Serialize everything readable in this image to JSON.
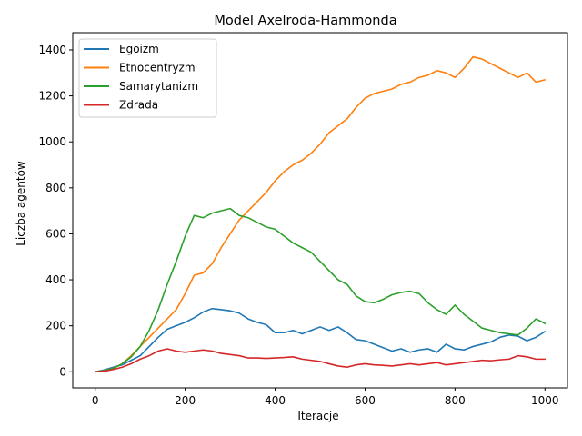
{
  "chart_data": {
    "type": "line",
    "title": "Model Axelroda-Hammonda",
    "xlabel": "Iteracje",
    "ylabel": "Liczba agentów",
    "xlim": [
      -50,
      1050
    ],
    "ylim": [
      -70,
      1475
    ],
    "xticks": [
      0,
      200,
      400,
      600,
      800,
      1000
    ],
    "yticks": [
      0,
      200,
      400,
      600,
      800,
      1000,
      1200,
      1400
    ],
    "grid": false,
    "legend_position": "top-left",
    "series": [
      {
        "name": "Egoizm",
        "color": "#1f77b4",
        "points": [
          [
            0,
            0
          ],
          [
            20,
            8
          ],
          [
            40,
            20
          ],
          [
            60,
            30
          ],
          [
            80,
            50
          ],
          [
            100,
            70
          ],
          [
            120,
            110
          ],
          [
            140,
            150
          ],
          [
            160,
            185
          ],
          [
            180,
            200
          ],
          [
            200,
            215
          ],
          [
            220,
            235
          ],
          [
            240,
            260
          ],
          [
            260,
            275
          ],
          [
            280,
            270
          ],
          [
            300,
            265
          ],
          [
            320,
            255
          ],
          [
            340,
            230
          ],
          [
            360,
            215
          ],
          [
            380,
            205
          ],
          [
            400,
            170
          ],
          [
            420,
            170
          ],
          [
            440,
            180
          ],
          [
            460,
            165
          ],
          [
            480,
            180
          ],
          [
            500,
            195
          ],
          [
            520,
            180
          ],
          [
            540,
            195
          ],
          [
            560,
            170
          ],
          [
            580,
            140
          ],
          [
            600,
            135
          ],
          [
            620,
            120
          ],
          [
            640,
            105
          ],
          [
            660,
            90
          ],
          [
            680,
            100
          ],
          [
            700,
            85
          ],
          [
            720,
            95
          ],
          [
            740,
            100
          ],
          [
            760,
            85
          ],
          [
            780,
            120
          ],
          [
            800,
            100
          ],
          [
            820,
            95
          ],
          [
            840,
            110
          ],
          [
            860,
            120
          ],
          [
            880,
            130
          ],
          [
            900,
            150
          ],
          [
            920,
            160
          ],
          [
            940,
            155
          ],
          [
            960,
            135
          ],
          [
            980,
            150
          ],
          [
            1000,
            175
          ]
        ]
      },
      {
        "name": "Etnocentryzm",
        "color": "#ff7f0e",
        "points": [
          [
            0,
            0
          ],
          [
            20,
            5
          ],
          [
            40,
            15
          ],
          [
            60,
            35
          ],
          [
            80,
            70
          ],
          [
            100,
            110
          ],
          [
            120,
            150
          ],
          [
            140,
            190
          ],
          [
            160,
            230
          ],
          [
            180,
            270
          ],
          [
            200,
            340
          ],
          [
            220,
            420
          ],
          [
            240,
            430
          ],
          [
            260,
            470
          ],
          [
            280,
            540
          ],
          [
            300,
            600
          ],
          [
            320,
            660
          ],
          [
            340,
            700
          ],
          [
            360,
            740
          ],
          [
            380,
            780
          ],
          [
            400,
            830
          ],
          [
            420,
            870
          ],
          [
            440,
            900
          ],
          [
            460,
            920
          ],
          [
            480,
            950
          ],
          [
            500,
            990
          ],
          [
            520,
            1040
          ],
          [
            540,
            1070
          ],
          [
            560,
            1100
          ],
          [
            580,
            1150
          ],
          [
            600,
            1190
          ],
          [
            620,
            1210
          ],
          [
            640,
            1220
          ],
          [
            660,
            1230
          ],
          [
            680,
            1250
          ],
          [
            700,
            1260
          ],
          [
            720,
            1280
          ],
          [
            740,
            1290
          ],
          [
            760,
            1310
          ],
          [
            780,
            1300
          ],
          [
            800,
            1280
          ],
          [
            820,
            1320
          ],
          [
            840,
            1370
          ],
          [
            860,
            1360
          ],
          [
            880,
            1340
          ],
          [
            900,
            1320
          ],
          [
            920,
            1300
          ],
          [
            940,
            1280
          ],
          [
            960,
            1300
          ],
          [
            980,
            1260
          ],
          [
            1000,
            1270
          ]
        ]
      },
      {
        "name": "Samarytanizm",
        "color": "#2ca02c",
        "points": [
          [
            0,
            0
          ],
          [
            20,
            5
          ],
          [
            40,
            15
          ],
          [
            60,
            35
          ],
          [
            80,
            65
          ],
          [
            100,
            110
          ],
          [
            120,
            180
          ],
          [
            140,
            270
          ],
          [
            160,
            380
          ],
          [
            180,
            480
          ],
          [
            200,
            590
          ],
          [
            220,
            680
          ],
          [
            240,
            670
          ],
          [
            260,
            690
          ],
          [
            280,
            700
          ],
          [
            300,
            710
          ],
          [
            320,
            680
          ],
          [
            340,
            670
          ],
          [
            360,
            650
          ],
          [
            380,
            630
          ],
          [
            400,
            620
          ],
          [
            420,
            590
          ],
          [
            440,
            560
          ],
          [
            460,
            540
          ],
          [
            480,
            520
          ],
          [
            500,
            480
          ],
          [
            520,
            440
          ],
          [
            540,
            400
          ],
          [
            560,
            380
          ],
          [
            580,
            330
          ],
          [
            600,
            305
          ],
          [
            620,
            300
          ],
          [
            640,
            315
          ],
          [
            660,
            335
          ],
          [
            680,
            345
          ],
          [
            700,
            350
          ],
          [
            720,
            340
          ],
          [
            740,
            300
          ],
          [
            760,
            270
          ],
          [
            780,
            250
          ],
          [
            800,
            290
          ],
          [
            820,
            250
          ],
          [
            840,
            220
          ],
          [
            860,
            190
          ],
          [
            880,
            180
          ],
          [
            900,
            170
          ],
          [
            920,
            165
          ],
          [
            940,
            160
          ],
          [
            960,
            190
          ],
          [
            980,
            230
          ],
          [
            1000,
            210
          ]
        ]
      },
      {
        "name": "Zdrada",
        "color": "#d62728",
        "points": [
          [
            0,
            0
          ],
          [
            20,
            3
          ],
          [
            40,
            10
          ],
          [
            60,
            20
          ],
          [
            80,
            35
          ],
          [
            100,
            55
          ],
          [
            120,
            70
          ],
          [
            140,
            90
          ],
          [
            160,
            100
          ],
          [
            180,
            90
          ],
          [
            200,
            85
          ],
          [
            220,
            90
          ],
          [
            240,
            95
          ],
          [
            260,
            90
          ],
          [
            280,
            80
          ],
          [
            300,
            75
          ],
          [
            320,
            70
          ],
          [
            340,
            60
          ],
          [
            360,
            60
          ],
          [
            380,
            58
          ],
          [
            400,
            60
          ],
          [
            420,
            62
          ],
          [
            440,
            65
          ],
          [
            460,
            55
          ],
          [
            480,
            50
          ],
          [
            500,
            45
          ],
          [
            520,
            35
          ],
          [
            540,
            25
          ],
          [
            560,
            20
          ],
          [
            580,
            30
          ],
          [
            600,
            35
          ],
          [
            620,
            30
          ],
          [
            640,
            28
          ],
          [
            660,
            25
          ],
          [
            680,
            30
          ],
          [
            700,
            35
          ],
          [
            720,
            30
          ],
          [
            740,
            35
          ],
          [
            760,
            40
          ],
          [
            780,
            30
          ],
          [
            800,
            35
          ],
          [
            820,
            40
          ],
          [
            840,
            45
          ],
          [
            860,
            50
          ],
          [
            880,
            48
          ],
          [
            900,
            52
          ],
          [
            920,
            55
          ],
          [
            940,
            70
          ],
          [
            960,
            65
          ],
          [
            980,
            55
          ],
          [
            1000,
            55
          ]
        ]
      }
    ]
  }
}
